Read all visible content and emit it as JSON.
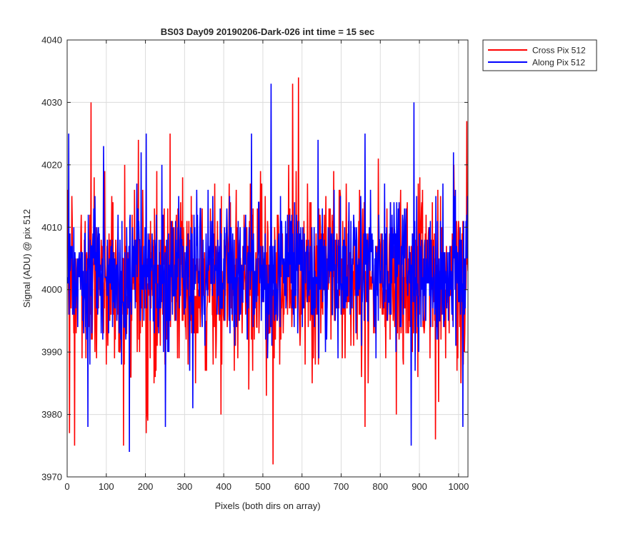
{
  "chart_data": {
    "type": "line",
    "title": "BS03 Day09 20190206-Dark-026 int time = 15 sec",
    "xlabel": "Pixels (both dirs on array)",
    "ylabel": "Signal (ADU) @ pix 512",
    "xlim": [
      0,
      1024
    ],
    "ylim": [
      3970,
      4040
    ],
    "xticks": [
      0,
      100,
      200,
      300,
      400,
      500,
      600,
      700,
      800,
      900,
      1000
    ],
    "yticks": [
      3970,
      3980,
      3990,
      4000,
      4010,
      4020,
      4030,
      4040
    ],
    "grid": true,
    "legend_position": "outside top-right",
    "series": [
      {
        "name": "Cross Pix 512",
        "color": "#ff0000",
        "mean": 4002,
        "std": 6.8,
        "n_points": 1024,
        "draw_order": 0,
        "noise_seed": 1729,
        "highlights": [
          {
            "x": 5,
            "y": 3977
          },
          {
            "x": 18,
            "y": 3975
          },
          {
            "x": 60,
            "y": 4030
          },
          {
            "x": 143,
            "y": 3975
          },
          {
            "x": 201,
            "y": 3977
          },
          {
            "x": 262,
            "y": 4025
          },
          {
            "x": 392,
            "y": 3980
          },
          {
            "x": 508,
            "y": 3983
          },
          {
            "x": 525,
            "y": 3972
          },
          {
            "x": 575,
            "y": 4033
          },
          {
            "x": 590,
            "y": 4034
          },
          {
            "x": 760,
            "y": 3978
          },
          {
            "x": 840,
            "y": 3980
          },
          {
            "x": 940,
            "y": 3976
          },
          {
            "x": 1020,
            "y": 4027
          },
          {
            "x": 1005,
            "y": 3985
          }
        ]
      },
      {
        "name": "Along Pix 512",
        "color": "#0000ff",
        "mean": 4003,
        "std": 5.8,
        "n_points": 1024,
        "draw_order": 1,
        "noise_seed": 4242,
        "highlights": [
          {
            "x": 3,
            "y": 4025
          },
          {
            "x": 52,
            "y": 3978
          },
          {
            "x": 92,
            "y": 4023
          },
          {
            "x": 158,
            "y": 3974
          },
          {
            "x": 188,
            "y": 4022
          },
          {
            "x": 250,
            "y": 3978
          },
          {
            "x": 320,
            "y": 3981
          },
          {
            "x": 470,
            "y": 4025
          },
          {
            "x": 520,
            "y": 4033
          },
          {
            "x": 885,
            "y": 4030
          },
          {
            "x": 878,
            "y": 3975
          },
          {
            "x": 640,
            "y": 4024
          },
          {
            "x": 760,
            "y": 4025
          },
          {
            "x": 1010,
            "y": 3978
          }
        ]
      }
    ]
  }
}
